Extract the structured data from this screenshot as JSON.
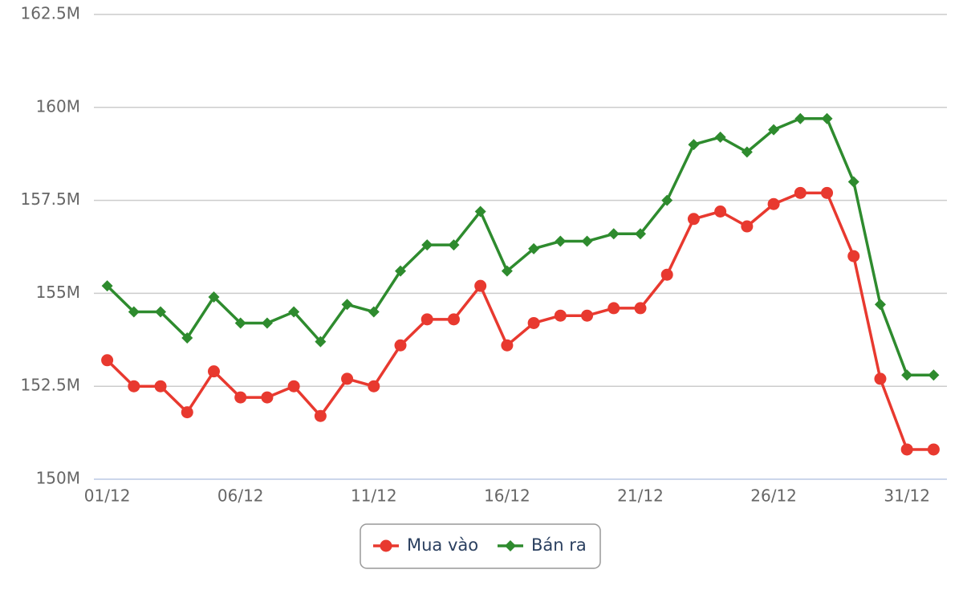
{
  "chart_data": {
    "type": "line",
    "categories": [
      "01/12",
      null,
      null,
      null,
      null,
      "06/12",
      null,
      null,
      null,
      null,
      "11/12",
      null,
      null,
      null,
      null,
      "16/12",
      null,
      null,
      null,
      null,
      "21/12",
      null,
      null,
      null,
      null,
      "26/12",
      null,
      null,
      null,
      null,
      "31/12",
      null
    ],
    "series": [
      {
        "name": "Mua vào",
        "color": "#e8392f",
        "marker": "circle",
        "values": [
          153.2,
          152.5,
          152.5,
          151.8,
          152.9,
          152.2,
          152.2,
          152.5,
          151.7,
          152.7,
          152.5,
          153.6,
          154.3,
          154.3,
          155.2,
          153.6,
          154.2,
          154.4,
          154.4,
          154.6,
          154.6,
          155.5,
          157,
          157.2,
          156.8,
          157.4,
          157.7,
          157.7,
          156,
          152.7,
          150.8,
          150.8
        ]
      },
      {
        "name": "Bán ra",
        "color": "#2e8b2e",
        "marker": "diamond",
        "values": [
          155.2,
          154.5,
          154.5,
          153.8,
          154.9,
          154.2,
          154.2,
          154.5,
          153.7,
          154.7,
          154.5,
          155.6,
          156.3,
          156.3,
          157.2,
          155.6,
          156.2,
          156.4,
          156.4,
          156.6,
          156.6,
          157.5,
          159,
          159.2,
          158.8,
          159.4,
          159.7,
          159.7,
          158,
          154.7,
          152.8,
          152.8
        ]
      }
    ],
    "ylim": [
      150,
      162.5
    ],
    "yticks": [
      {
        "value": 150,
        "label": "150M"
      },
      {
        "value": 152.5,
        "label": "152.5M"
      },
      {
        "value": 155,
        "label": "155M"
      },
      {
        "value": 157.5,
        "label": "157.5M"
      },
      {
        "value": 160,
        "label": "160M"
      },
      {
        "value": 162.5,
        "label": "162.5M"
      }
    ],
    "grid": true
  }
}
